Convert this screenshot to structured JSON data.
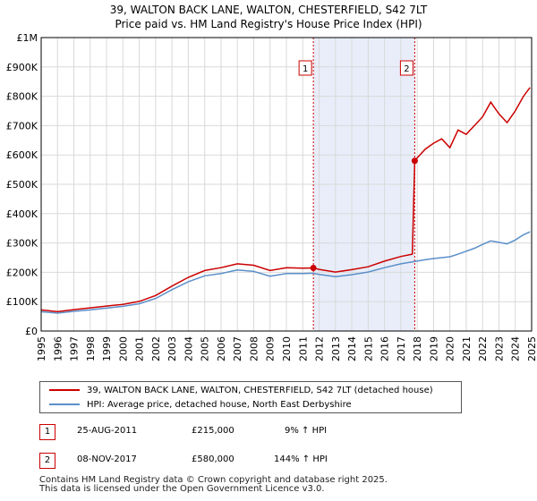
{
  "chart_data": {
    "type": "line",
    "title": "39, WALTON BACK LANE, WALTON, CHESTERFIELD, S42 7LT",
    "subtitle": "Price paid vs. HM Land Registry's House Price Index (HPI)",
    "xlim": [
      1995,
      2025
    ],
    "ylim": [
      0,
      1000000
    ],
    "x_ticks": [
      "1995",
      "1996",
      "1997",
      "1998",
      "1999",
      "2000",
      "2001",
      "2002",
      "2003",
      "2004",
      "2005",
      "2006",
      "2007",
      "2008",
      "2009",
      "2010",
      "2011",
      "2012",
      "2013",
      "2014",
      "2015",
      "2016",
      "2017",
      "2018",
      "2019",
      "2020",
      "2021",
      "2022",
      "2023",
      "2024",
      "2025"
    ],
    "y_ticks": [
      {
        "value": 0,
        "label": "£0"
      },
      {
        "value": 100000,
        "label": "£100K"
      },
      {
        "value": 200000,
        "label": "£200K"
      },
      {
        "value": 300000,
        "label": "£300K"
      },
      {
        "value": 400000,
        "label": "£400K"
      },
      {
        "value": 500000,
        "label": "£500K"
      },
      {
        "value": 600000,
        "label": "£600K"
      },
      {
        "value": 700000,
        "label": "£700K"
      },
      {
        "value": 800000,
        "label": "£800K"
      },
      {
        "value": 900000,
        "label": "£900K"
      },
      {
        "value": 1000000,
        "label": "£1M"
      }
    ],
    "shaded_region": {
      "from": 2011.65,
      "to": 2017.85
    },
    "series": [
      {
        "name": "39, WALTON BACK LANE, WALTON, CHESTERFIELD, S42 7LT (detached house)",
        "color": "#cc0000",
        "points": [
          [
            1995.0,
            72000
          ],
          [
            1996.0,
            66000
          ],
          [
            1997.0,
            73000
          ],
          [
            1998.0,
            79000
          ],
          [
            1999.0,
            85000
          ],
          [
            2000.0,
            91000
          ],
          [
            2001.0,
            101000
          ],
          [
            2002.0,
            121000
          ],
          [
            2003.0,
            153000
          ],
          [
            2004.0,
            183000
          ],
          [
            2005.0,
            206000
          ],
          [
            2006.0,
            216000
          ],
          [
            2007.0,
            229000
          ],
          [
            2008.0,
            224000
          ],
          [
            2009.0,
            206000
          ],
          [
            2010.0,
            216000
          ],
          [
            2011.0,
            214000
          ],
          [
            2011.65,
            215000
          ],
          [
            2012.0,
            210000
          ],
          [
            2013.0,
            201000
          ],
          [
            2014.0,
            209000
          ],
          [
            2015.0,
            219000
          ],
          [
            2016.0,
            238000
          ],
          [
            2017.0,
            254000
          ],
          [
            2017.7,
            262000
          ],
          [
            2017.85,
            580000
          ],
          [
            2018.0,
            590000
          ],
          [
            2018.5,
            620000
          ],
          [
            2019.0,
            640000
          ],
          [
            2019.5,
            655000
          ],
          [
            2020.0,
            625000
          ],
          [
            2020.5,
            685000
          ],
          [
            2021.0,
            670000
          ],
          [
            2021.5,
            700000
          ],
          [
            2022.0,
            730000
          ],
          [
            2022.5,
            780000
          ],
          [
            2023.0,
            740000
          ],
          [
            2023.5,
            710000
          ],
          [
            2024.0,
            750000
          ],
          [
            2024.5,
            800000
          ],
          [
            2024.9,
            830000
          ]
        ]
      },
      {
        "name": "HPI: Average price, detached house, North East Derbyshire",
        "color": "#5b8fc9",
        "points": [
          [
            1995.0,
            66000
          ],
          [
            1996.0,
            61000
          ],
          [
            1997.0,
            67000
          ],
          [
            1998.0,
            72000
          ],
          [
            1999.0,
            78000
          ],
          [
            2000.0,
            84000
          ],
          [
            2001.0,
            93000
          ],
          [
            2002.0,
            111000
          ],
          [
            2003.0,
            141000
          ],
          [
            2004.0,
            168000
          ],
          [
            2005.0,
            188000
          ],
          [
            2006.0,
            196000
          ],
          [
            2007.0,
            208000
          ],
          [
            2008.0,
            203000
          ],
          [
            2009.0,
            187000
          ],
          [
            2010.0,
            196000
          ],
          [
            2011.0,
            196000
          ],
          [
            2011.65,
            197000
          ],
          [
            2012.0,
            193000
          ],
          [
            2013.0,
            185000
          ],
          [
            2014.0,
            192000
          ],
          [
            2015.0,
            201000
          ],
          [
            2016.0,
            216000
          ],
          [
            2017.0,
            229000
          ],
          [
            2017.85,
            237000
          ],
          [
            2018.5,
            243000
          ],
          [
            2019.0,
            247000
          ],
          [
            2019.5,
            250000
          ],
          [
            2020.0,
            253000
          ],
          [
            2020.5,
            262000
          ],
          [
            2021.0,
            272000
          ],
          [
            2021.5,
            282000
          ],
          [
            2022.0,
            295000
          ],
          [
            2022.5,
            307000
          ],
          [
            2023.0,
            302000
          ],
          [
            2023.5,
            297000
          ],
          [
            2024.0,
            310000
          ],
          [
            2024.5,
            328000
          ],
          [
            2024.9,
            338000
          ]
        ]
      }
    ],
    "sales": [
      {
        "id": "1",
        "x": 2011.65,
        "value": 215000
      },
      {
        "id": "2",
        "x": 2017.85,
        "value": 580000
      }
    ],
    "legend_position": "below"
  },
  "transactions": [
    {
      "id": "1",
      "date": "25-AUG-2011",
      "price": "£215,000",
      "hpi": "9% ↑ HPI"
    },
    {
      "id": "2",
      "date": "08-NOV-2017",
      "price": "£580,000",
      "hpi": "144% ↑ HPI"
    }
  ],
  "footer": {
    "line1": "Contains HM Land Registry data © Crown copyright and database right 2025.",
    "line2": "This data is licensed under the Open Government Licence v3.0."
  },
  "colors": {
    "price": "#cc0000",
    "hpi": "#5b8fc9",
    "shade": "#e8edf9",
    "grid": "#d9d9d9"
  }
}
